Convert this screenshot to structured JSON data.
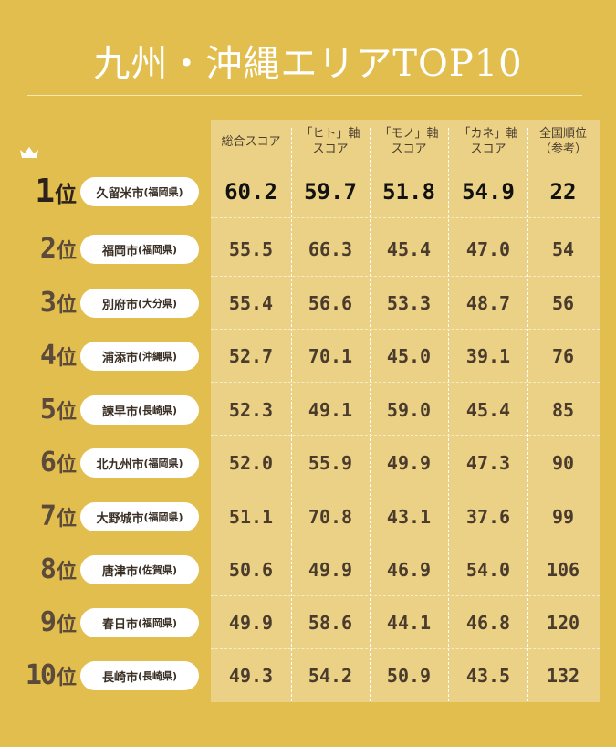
{
  "title": "九州・沖縄エリアTOP10",
  "rank_suffix": "位",
  "headers": [
    {
      "lines": [
        "総合スコア"
      ]
    },
    {
      "lines": [
        "「ヒト」軸",
        "スコア"
      ]
    },
    {
      "lines": [
        "「モノ」軸",
        "スコア"
      ]
    },
    {
      "lines": [
        "「カネ」軸",
        "スコア"
      ]
    },
    {
      "lines": [
        "全国順位",
        "（参考）"
      ]
    }
  ],
  "rows": [
    {
      "rank": "1",
      "city": "久留米市",
      "pref": "(福岡県)",
      "total": "60.2",
      "hito": "59.7",
      "mono": "51.8",
      "kane": "54.9",
      "national": "22"
    },
    {
      "rank": "2",
      "city": "福岡市",
      "pref": "(福岡県)",
      "total": "55.5",
      "hito": "66.3",
      "mono": "45.4",
      "kane": "47.0",
      "national": "54"
    },
    {
      "rank": "3",
      "city": "別府市",
      "pref": "(大分県)",
      "total": "55.4",
      "hito": "56.6",
      "mono": "53.3",
      "kane": "48.7",
      "national": "56"
    },
    {
      "rank": "4",
      "city": "浦添市",
      "pref": "(沖縄県)",
      "total": "52.7",
      "hito": "70.1",
      "mono": "45.0",
      "kane": "39.1",
      "national": "76"
    },
    {
      "rank": "5",
      "city": "諫早市",
      "pref": "(長崎県)",
      "total": "52.3",
      "hito": "49.1",
      "mono": "59.0",
      "kane": "45.4",
      "national": "85"
    },
    {
      "rank": "6",
      "city": "北九州市",
      "pref": "(福岡県)",
      "total": "52.0",
      "hito": "55.9",
      "mono": "49.9",
      "kane": "47.3",
      "national": "90"
    },
    {
      "rank": "7",
      "city": "大野城市",
      "pref": "(福岡県)",
      "total": "51.1",
      "hito": "70.8",
      "mono": "43.1",
      "kane": "37.6",
      "national": "99"
    },
    {
      "rank": "8",
      "city": "唐津市",
      "pref": "(佐賀県)",
      "total": "50.6",
      "hito": "49.9",
      "mono": "46.9",
      "kane": "54.0",
      "national": "106"
    },
    {
      "rank": "9",
      "city": "春日市",
      "pref": "(福岡県)",
      "total": "49.9",
      "hito": "58.6",
      "mono": "44.1",
      "kane": "46.8",
      "national": "120"
    },
    {
      "rank": "10",
      "city": "長崎市",
      "pref": "(長崎県)",
      "total": "49.3",
      "hito": "54.2",
      "mono": "50.9",
      "kane": "43.5",
      "national": "132"
    }
  ],
  "colors": {
    "background": "#E2BE4E",
    "table": "#EBD186",
    "rank_text": "#5C4A3A"
  },
  "icons": {
    "first_place": "crown-icon"
  }
}
